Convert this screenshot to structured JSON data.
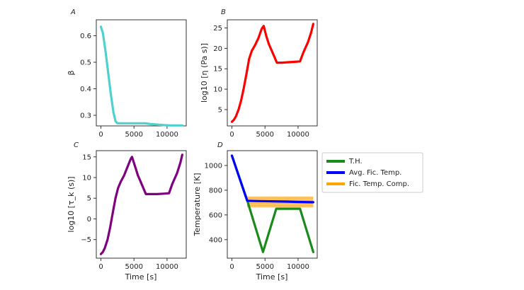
{
  "chart_data": [
    {
      "panel": "A",
      "type": "line",
      "xlabel": "",
      "ylabel": "β",
      "xlim": [
        -700,
        12900
      ],
      "ylim": [
        0.26,
        0.66
      ],
      "xticks": [
        0,
        5000,
        10000
      ],
      "yticks": [
        0.3,
        0.4,
        0.5,
        0.6
      ],
      "series": [
        {
          "color": "#4fd1cf",
          "x": [
            0,
            300,
            700,
            1100,
            1500,
            1900,
            2200,
            2500,
            3000,
            4000,
            5000,
            6000,
            6700,
            7500,
            8500,
            9500,
            10500,
            11500,
            12300
          ],
          "y": [
            0.634,
            0.61,
            0.54,
            0.46,
            0.38,
            0.31,
            0.278,
            0.27,
            0.27,
            0.27,
            0.27,
            0.27,
            0.27,
            0.267,
            0.265,
            0.263,
            0.262,
            0.262,
            0.262
          ]
        }
      ]
    },
    {
      "panel": "B",
      "type": "line",
      "xlabel": "",
      "ylabel": "log10 [η (Pa s)]",
      "xlim": [
        -700,
        12900
      ],
      "ylim": [
        1,
        27
      ],
      "xticks": [
        0,
        5000,
        10000
      ],
      "yticks": [
        5,
        10,
        15,
        20,
        25
      ],
      "series": [
        {
          "color": "#ff0000",
          "x": [
            0,
            300,
            600,
            1000,
            1400,
            1800,
            2200,
            2600,
            3000,
            3500,
            4000,
            4500,
            4800,
            5200,
            5600,
            6000,
            6400,
            6800,
            7500,
            8500,
            9500,
            10300,
            10800,
            11500,
            12000,
            12300
          ],
          "y": [
            2,
            2.5,
            3.3,
            5,
            7.3,
            10.3,
            13.8,
            17.4,
            19.4,
            20.8,
            22.5,
            24.8,
            25.5,
            23,
            21,
            19.5,
            18,
            16.5,
            16.5,
            16.6,
            16.7,
            16.8,
            19,
            21.5,
            24,
            26
          ]
        }
      ]
    },
    {
      "panel": "C",
      "type": "line",
      "xlabel": "Time [s]",
      "ylabel": "log10 [τ_k (s)]",
      "xlim": [
        -700,
        12900
      ],
      "ylim": [
        -9.5,
        16.5
      ],
      "xticks": [
        0,
        5000,
        10000
      ],
      "yticks": [
        -5,
        0,
        5,
        10,
        15
      ],
      "series": [
        {
          "color": "#800080",
          "x": [
            0,
            300,
            600,
            1000,
            1400,
            1800,
            2200,
            2600,
            3000,
            3500,
            4000,
            4500,
            4700,
            5200,
            5600,
            6000,
            6400,
            6800,
            7500,
            8500,
            9500,
            10300,
            10800,
            11500,
            12000,
            12300
          ],
          "y": [
            -8.5,
            -8,
            -7,
            -5,
            -2,
            1.5,
            5,
            7.5,
            9,
            10.5,
            12.5,
            14.5,
            15,
            12.5,
            10.5,
            9,
            7.5,
            6,
            6,
            6,
            6.1,
            6.2,
            8.5,
            11,
            13.5,
            15.5
          ]
        }
      ]
    },
    {
      "panel": "D",
      "type": "line",
      "xlabel": "Time [s]",
      "ylabel": "Temperature [K]",
      "xlim": [
        -700,
        12900
      ],
      "ylim": [
        250,
        1120
      ],
      "xticks": [
        0,
        5000,
        10000
      ],
      "yticks": [
        400,
        600,
        800,
        1000
      ],
      "legend": {
        "position": "right",
        "entries": [
          "T.H.",
          "Avg. Fic. Temp.",
          "Fic. Temp. Comp."
        ]
      },
      "band": {
        "name": "Fic. Temp. Comp.",
        "color": "#ffa500",
        "x": [
          2300,
          12300
        ],
        "low": [
          660,
          660
        ],
        "high": [
          750,
          750
        ]
      },
      "series": [
        {
          "name": "T.H.",
          "color": "#1a8a1a",
          "x": [
            0,
            2300,
            4700,
            6700,
            10300,
            12300
          ],
          "y": [
            1080,
            720,
            300,
            650,
            650,
            300
          ]
        },
        {
          "name": "Avg. Fic. Temp.",
          "color": "#0000ff",
          "x": [
            0,
            2300,
            4000,
            6000,
            8000,
            10000,
            12300
          ],
          "y": [
            1080,
            715,
            712,
            710,
            708,
            705,
            703
          ]
        }
      ]
    }
  ]
}
